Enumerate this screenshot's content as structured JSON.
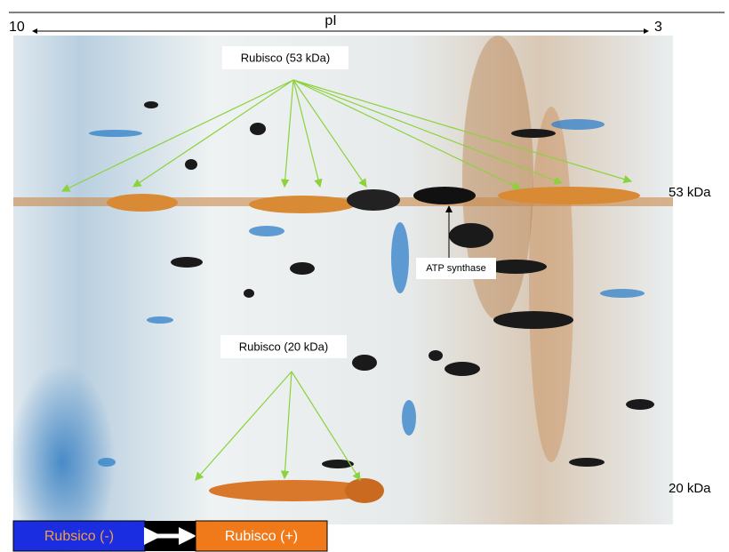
{
  "axis": {
    "left": "10",
    "label": "pI",
    "right": "3"
  },
  "annotations": {
    "rubisco_large": "Rubisco (53 kDa)",
    "atp_synthase": "ATP synthase",
    "rubisco_small": "Rubisco (20 kDa)"
  },
  "markers": {
    "upper": "53 kDa",
    "lower": "20 kDa"
  },
  "legend": {
    "left": "Rubsico (-)",
    "right": "Rubisco (+)"
  }
}
